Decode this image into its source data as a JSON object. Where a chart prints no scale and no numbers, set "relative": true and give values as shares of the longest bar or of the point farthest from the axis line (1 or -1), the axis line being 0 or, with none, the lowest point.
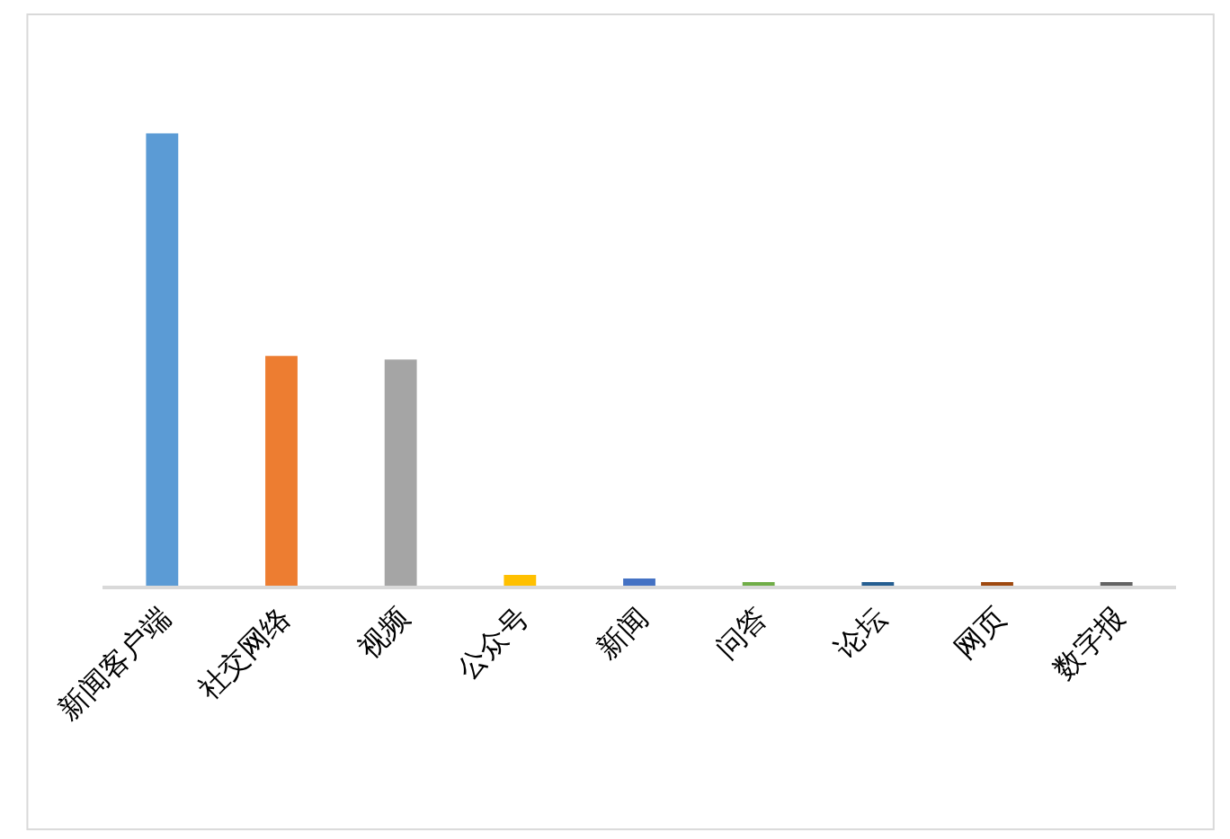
{
  "chart_data": {
    "type": "bar",
    "relative": true,
    "categories": [
      "新闻客户端",
      "社交网络",
      "视频",
      "公众号",
      "新闻",
      "问答",
      "论坛",
      "网页",
      "数字报"
    ],
    "values": [
      1,
      0.508,
      0.5,
      0.024,
      0.016,
      0.004,
      0.004,
      0.004,
      0.004
    ],
    "colors": [
      "#5b9bd5",
      "#ed7d31",
      "#a5a5a5",
      "#ffc000",
      "#4472c4",
      "#70ad47",
      "#255e91",
      "#9e480e",
      "#636363"
    ]
  }
}
